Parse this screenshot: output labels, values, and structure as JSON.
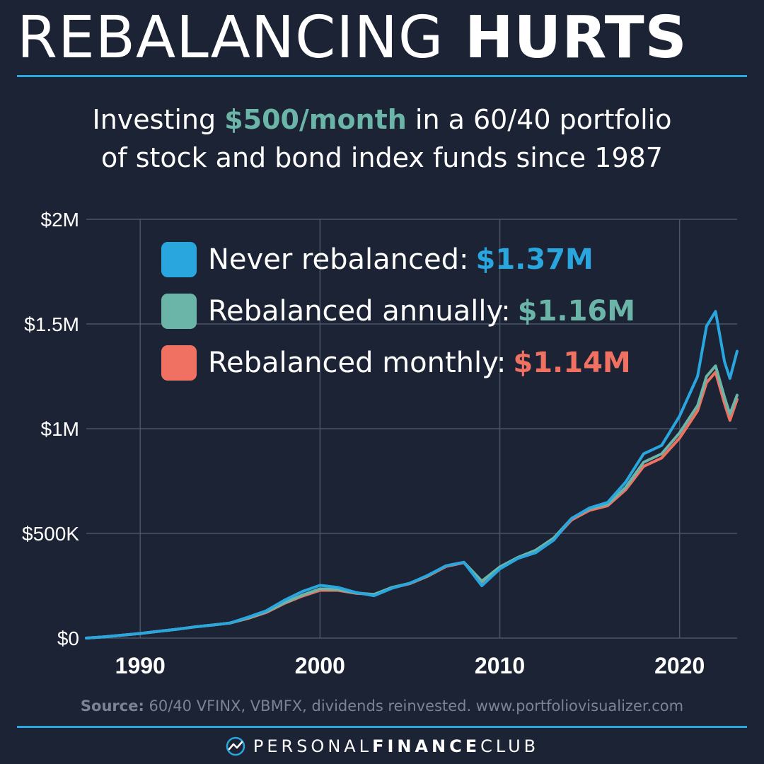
{
  "title": {
    "light": "REBALANCING",
    "bold": "HURTS"
  },
  "subtitle": {
    "pre": "Investing ",
    "accent": "$500/month",
    "post": " in a 60/40 portfolio",
    "line2": "of stock and bond index funds since 1987"
  },
  "legend": [
    {
      "label": "Never rebalanced:",
      "value": "$1.37M",
      "color": "#2aa6df"
    },
    {
      "label": "Rebalanced annually:",
      "value": "$1.16M",
      "color": "#6bb5a8"
    },
    {
      "label": "Rebalanced monthly:",
      "value": "$1.14M",
      "color": "#f07162"
    }
  ],
  "source": {
    "label": "Source:",
    "text": " 60/40 VFINX, VBMFX, dividends reinvested. www.portfoliovisualizer.com"
  },
  "brand": {
    "light": "PERSONAL",
    "bold": "FINANCE",
    "tail": "CLUB",
    "logo_icon": "pfc-logo-icon"
  },
  "chart_data": {
    "type": "line",
    "xlim": [
      1987,
      2023.2
    ],
    "ylim": [
      0,
      2000000
    ],
    "yticks": [
      0,
      500000,
      1000000,
      1500000,
      2000000
    ],
    "ytick_labels": [
      "$0",
      "$500K",
      "$1M",
      "$1.5M",
      "$2M"
    ],
    "xticks": [
      1990,
      2000,
      2010,
      2020
    ],
    "xtick_labels": [
      "1990",
      "2000",
      "2010",
      "2020"
    ],
    "grid": true,
    "legend_position": "top-left",
    "series": [
      {
        "name": "Never rebalanced",
        "color": "#2aa6df",
        "points": [
          [
            1987,
            0
          ],
          [
            1988,
            6000
          ],
          [
            1989,
            14000
          ],
          [
            1990,
            22000
          ],
          [
            1991,
            32000
          ],
          [
            1992,
            42000
          ],
          [
            1993,
            53000
          ],
          [
            1994,
            62000
          ],
          [
            1995,
            72000
          ],
          [
            1996,
            100000
          ],
          [
            1997,
            130000
          ],
          [
            1998,
            180000
          ],
          [
            1999,
            222000
          ],
          [
            2000,
            252000
          ],
          [
            2001,
            242000
          ],
          [
            2002,
            218000
          ],
          [
            2003,
            202000
          ],
          [
            2004,
            238000
          ],
          [
            2005,
            262000
          ],
          [
            2006,
            300000
          ],
          [
            2007,
            345000
          ],
          [
            2008,
            362000
          ],
          [
            2009,
            250000
          ],
          [
            2010,
            330000
          ],
          [
            2011,
            380000
          ],
          [
            2012,
            408000
          ],
          [
            2013,
            468000
          ],
          [
            2014,
            572000
          ],
          [
            2015,
            622000
          ],
          [
            2016,
            648000
          ],
          [
            2017,
            745000
          ],
          [
            2018,
            880000
          ],
          [
            2019,
            920000
          ],
          [
            2020,
            1060000
          ],
          [
            2021,
            1250000
          ],
          [
            2021.5,
            1490000
          ],
          [
            2022,
            1560000
          ],
          [
            2022.5,
            1320000
          ],
          [
            2022.8,
            1240000
          ],
          [
            2023.2,
            1370000
          ]
        ]
      },
      {
        "name": "Rebalanced annually",
        "color": "#6bb5a8",
        "points": [
          [
            1987,
            0
          ],
          [
            1988,
            6000
          ],
          [
            1989,
            14000
          ],
          [
            1990,
            22000
          ],
          [
            1991,
            32000
          ],
          [
            1992,
            42000
          ],
          [
            1993,
            53000
          ],
          [
            1994,
            62000
          ],
          [
            1995,
            72000
          ],
          [
            1996,
            96000
          ],
          [
            1997,
            125000
          ],
          [
            1998,
            168000
          ],
          [
            1999,
            205000
          ],
          [
            2000,
            235000
          ],
          [
            2001,
            232000
          ],
          [
            2002,
            216000
          ],
          [
            2003,
            208000
          ],
          [
            2004,
            242000
          ],
          [
            2005,
            262000
          ],
          [
            2006,
            298000
          ],
          [
            2007,
            345000
          ],
          [
            2008,
            362000
          ],
          [
            2009,
            272000
          ],
          [
            2010,
            340000
          ],
          [
            2011,
            385000
          ],
          [
            2012,
            420000
          ],
          [
            2013,
            478000
          ],
          [
            2014,
            572000
          ],
          [
            2015,
            618000
          ],
          [
            2016,
            640000
          ],
          [
            2017,
            720000
          ],
          [
            2018,
            840000
          ],
          [
            2019,
            880000
          ],
          [
            2020,
            980000
          ],
          [
            2021,
            1110000
          ],
          [
            2021.5,
            1250000
          ],
          [
            2022,
            1300000
          ],
          [
            2022.5,
            1150000
          ],
          [
            2022.8,
            1070000
          ],
          [
            2023.2,
            1160000
          ]
        ]
      },
      {
        "name": "Rebalanced monthly",
        "color": "#f07162",
        "points": [
          [
            1987,
            0
          ],
          [
            1988,
            6000
          ],
          [
            1989,
            14000
          ],
          [
            1990,
            22000
          ],
          [
            1991,
            32000
          ],
          [
            1992,
            42000
          ],
          [
            1993,
            53000
          ],
          [
            1994,
            62000
          ],
          [
            1995,
            72000
          ],
          [
            1996,
            94000
          ],
          [
            1997,
            122000
          ],
          [
            1998,
            165000
          ],
          [
            1999,
            200000
          ],
          [
            2000,
            228000
          ],
          [
            2001,
            228000
          ],
          [
            2002,
            214000
          ],
          [
            2003,
            208000
          ],
          [
            2004,
            240000
          ],
          [
            2005,
            260000
          ],
          [
            2006,
            296000
          ],
          [
            2007,
            342000
          ],
          [
            2008,
            360000
          ],
          [
            2009,
            268000
          ],
          [
            2010,
            336000
          ],
          [
            2011,
            380000
          ],
          [
            2012,
            415000
          ],
          [
            2013,
            472000
          ],
          [
            2014,
            565000
          ],
          [
            2015,
            610000
          ],
          [
            2016,
            632000
          ],
          [
            2017,
            708000
          ],
          [
            2018,
            820000
          ],
          [
            2019,
            860000
          ],
          [
            2020,
            955000
          ],
          [
            2021,
            1085000
          ],
          [
            2021.5,
            1220000
          ],
          [
            2022,
            1270000
          ],
          [
            2022.5,
            1120000
          ],
          [
            2022.8,
            1040000
          ],
          [
            2023.2,
            1140000
          ]
        ]
      }
    ]
  }
}
